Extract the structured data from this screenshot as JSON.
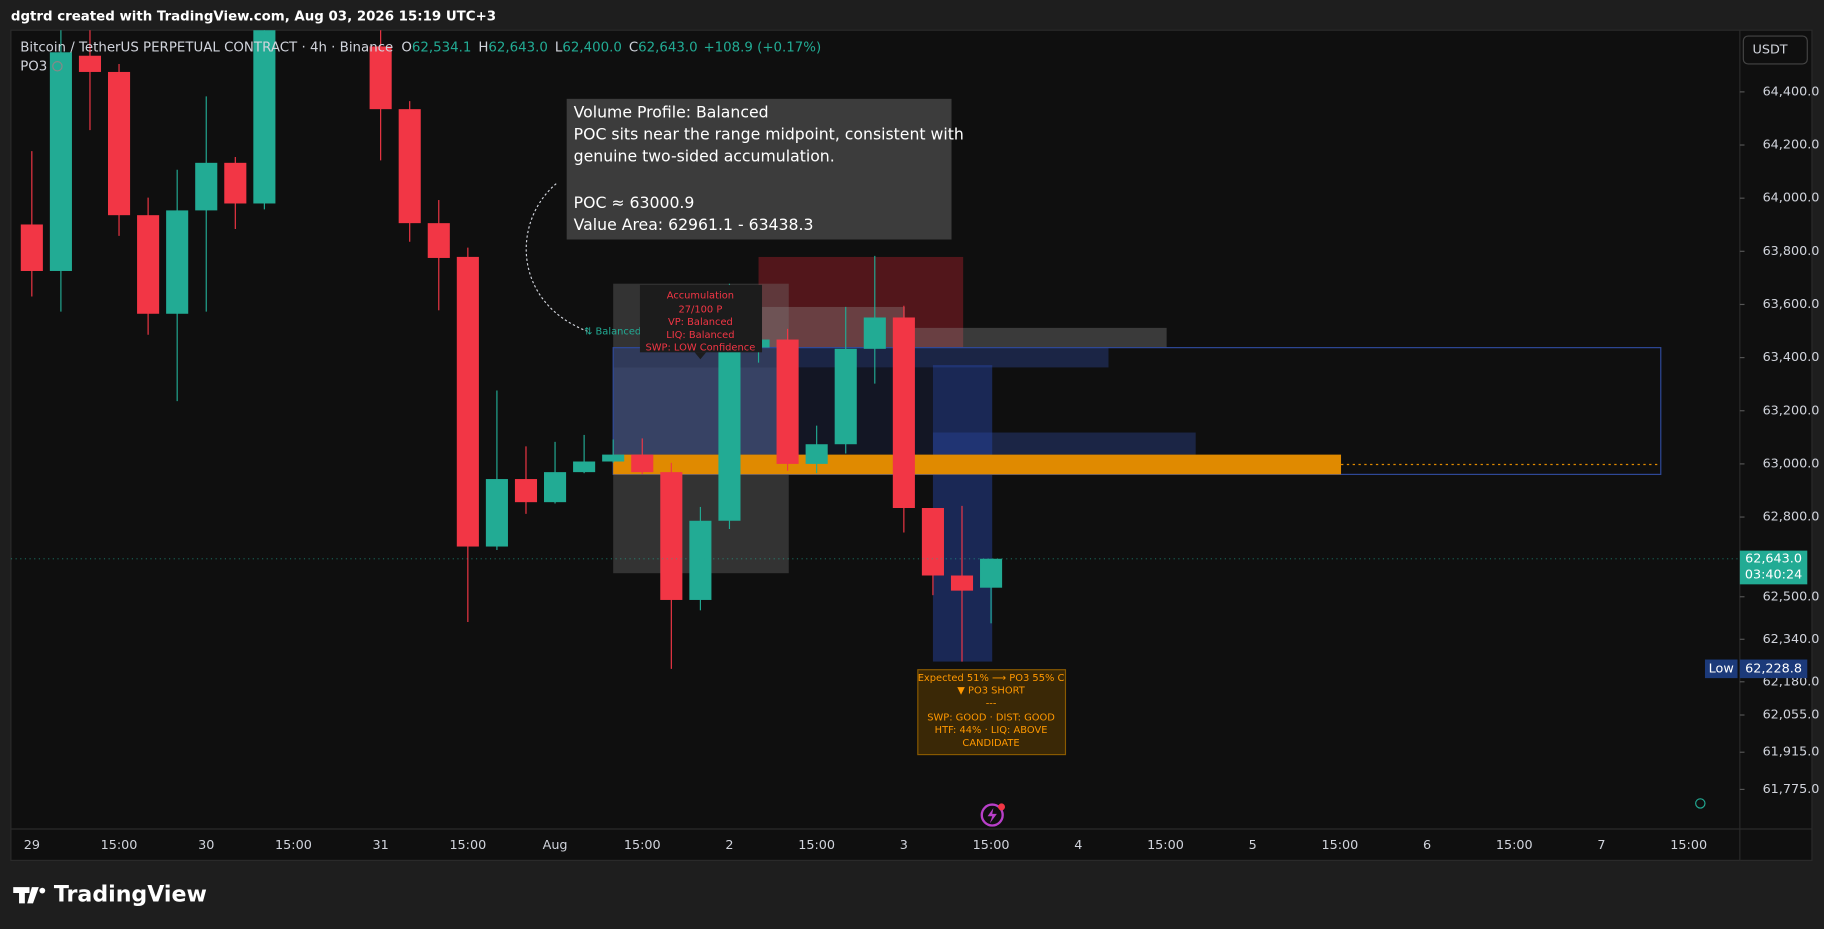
{
  "header": {
    "watermark": "dgtrd created with TradingView.com, Aug 03, 2026 15:19 UTC+3",
    "brand": "TradingView"
  },
  "chart_data": {
    "type": "candlestick",
    "title": "Bitcoin / TetherUS PERPETUAL CONTRACT · 4h · Binance",
    "indicator": "PO3",
    "currency": "USDT",
    "ohlc_legend": [
      {
        "key": "O",
        "value": "62,534.1"
      },
      {
        "key": "H",
        "value": "62,643.0"
      },
      {
        "key": "L",
        "value": "62,400.0"
      },
      {
        "key": "C",
        "value": "62,643.0"
      }
    ],
    "change": "+108.9 (+0.17%)",
    "categories": [
      "29",
      null,
      null,
      "15:00",
      null,
      null,
      "30",
      null,
      null,
      "15:00",
      null,
      null,
      "31",
      null,
      null,
      "15:00",
      null,
      null,
      "Aug",
      null,
      null,
      "15:00",
      null,
      null,
      "2",
      null,
      null,
      "15:00",
      null,
      null,
      "3",
      null,
      null,
      "15:00",
      null,
      null,
      "4",
      null,
      null,
      "15:00",
      null,
      null,
      "5",
      null,
      null,
      "15:00",
      null,
      null,
      "6",
      null,
      null,
      "15:00",
      null,
      null,
      "7",
      null,
      null,
      "15:00"
    ],
    "open": [
      63901,
      63726,
      64536,
      64475,
      63936,
      63565,
      63954,
      64133,
      63980,
      null,
      null,
      null,
      64571,
      64335,
      63906,
      63779,
      62689,
      62943,
      62856,
      62969,
      63009,
      63035,
      62969,
      62488,
      62786,
      63438,
      63468,
      63000,
      63074,
      63433,
      63551,
      62834,
      62580,
      62534.1,
      null,
      null,
      null,
      null,
      null,
      null,
      null,
      null,
      null,
      null,
      null,
      null,
      null,
      null,
      null,
      null,
      null,
      null,
      null,
      null,
      null,
      null,
      null,
      null
    ],
    "high": [
      64177,
      64650,
      64660,
      64505,
      64002,
      64107,
      64383,
      64155,
      64760,
      null,
      null,
      null,
      64640,
      64365,
      63993,
      63814,
      63276,
      63066,
      63083,
      63109,
      63092,
      63096,
      63004,
      62838,
      63678,
      63617,
      63508,
      63144,
      63591,
      63783,
      63595,
      62834,
      62842,
      62643.0,
      null,
      null,
      null,
      null,
      null,
      null,
      null,
      null,
      null,
      null,
      null,
      null,
      null,
      null,
      null,
      null,
      null,
      null,
      null,
      null,
      null,
      null,
      null,
      null
    ],
    "low": [
      63630,
      63573,
      64256,
      63858,
      63486,
      63236,
      63573,
      63884,
      63958,
      null,
      null,
      null,
      64142,
      63836,
      63578,
      62405,
      62676,
      62812,
      62851,
      62965,
      63004,
      62961,
      62228.8,
      62449,
      62755,
      63381,
      62974,
      62965,
      63039,
      63302,
      62742,
      62506,
      62256,
      62400.0,
      null,
      null,
      null,
      null,
      null,
      null,
      null,
      null,
      null,
      null,
      null,
      null,
      null,
      null,
      null,
      null,
      null,
      null,
      null,
      null,
      null,
      null,
      null,
      null
    ],
    "close": [
      63726,
      64549,
      64475,
      63936,
      63565,
      63954,
      64133,
      63980,
      64700,
      null,
      null,
      null,
      64335,
      63906,
      63775,
      62689,
      62943,
      62856,
      62969,
      63009,
      63035,
      62969,
      62488,
      62786,
      63433,
      63468,
      63000,
      63074,
      63433,
      63551,
      62834,
      62580,
      62523,
      62643.0,
      null,
      null,
      null,
      null,
      null,
      null,
      null,
      null,
      null,
      null,
      null,
      null,
      null,
      null,
      null,
      null,
      null,
      null,
      null,
      null,
      null,
      null,
      null,
      null
    ],
    "up_color": "#22ab94",
    "down_color": "#f23645",
    "ylim": [
      61626,
      64632
    ],
    "yticks": [
      {
        "value": 64400,
        "label": "64,400.0"
      },
      {
        "value": 64200,
        "label": "64,200.0"
      },
      {
        "value": 64000,
        "label": "64,000.0"
      },
      {
        "value": 63800,
        "label": "63,800.0"
      },
      {
        "value": 63600,
        "label": "63,600.0"
      },
      {
        "value": 63400,
        "label": "63,400.0"
      },
      {
        "value": 63200,
        "label": "63,200.0"
      },
      {
        "value": 63000,
        "label": "63,000.0"
      },
      {
        "value": 62800,
        "label": "62,800.0"
      },
      {
        "value": 62500,
        "label": "62,500.0"
      },
      {
        "value": 62340,
        "label": "62,340.0"
      },
      {
        "value": 62180,
        "label": "62,180.0"
      },
      {
        "value": 62055,
        "label": "62,055.0"
      },
      {
        "value": 61915,
        "label": "61,915.0"
      },
      {
        "value": 61775,
        "label": "61,775.0"
      }
    ],
    "grid": false,
    "last_price": {
      "value": 62643.0,
      "label": "62,643.0",
      "countdown": "03:40:24"
    },
    "low_marker": {
      "value": 62228.8,
      "label": "62,228.8",
      "tag": "Low"
    },
    "annotations": {
      "volume_profile": [
        "Volume Profile: Balanced",
        "POC sits near the range midpoint, consistent with",
        "genuine two-sided accumulation.",
        "POC ≈ 63000.9",
        "Value Area: 62961.1 - 63438.3"
      ],
      "balance_tag": "⇅ Balanced",
      "phase_label": [
        "Accumulation",
        "27/100 P",
        "VP: Balanced",
        "LIQ: Balanced",
        "SWP: LOW Confidence"
      ],
      "signal_box": [
        "Expected 51% ⟶ PO3 55% C",
        "▼ PO3 SHORT",
        "---",
        "SWP: GOOD · DIST: GOOD",
        "HTF: 44% · LIQ: ABOVE",
        "CANDIDATE"
      ]
    }
  }
}
